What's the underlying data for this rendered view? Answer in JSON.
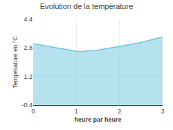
{
  "chart_data": {
    "type": "area",
    "title": "Evolution de la température",
    "xlabel": "heure par heure",
    "ylabel": "Température en °C",
    "x": [
      0,
      0.5,
      1.0,
      1.1,
      1.5,
      2.0,
      2.5,
      3.0
    ],
    "values": [
      3.05,
      2.82,
      2.62,
      2.6,
      2.68,
      2.88,
      3.1,
      3.42
    ],
    "color": "#6ec6dd",
    "xlim": [
      0,
      3
    ],
    "ylim": [
      -0.4,
      4.4
    ],
    "xticks": [
      0,
      1,
      2,
      3
    ],
    "yticks": [
      -0.4,
      1.2,
      2.8,
      4.4
    ],
    "grid": true
  }
}
